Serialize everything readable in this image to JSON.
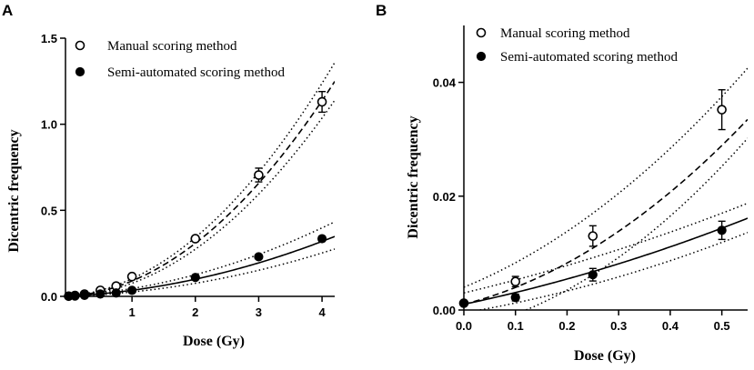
{
  "chart_data": [
    {
      "panel_label": "A",
      "type": "scatter",
      "xlabel": "Dose (Gy)",
      "ylabel": "Dicentric frequency",
      "xlim": [
        -0.05,
        4.2
      ],
      "ylim": [
        0,
        1.5
      ],
      "xticks": [
        "1",
        "2",
        "3",
        "4"
      ],
      "xtick_values": [
        1,
        2,
        3,
        4
      ],
      "yticks": [
        "0.0",
        "0.5",
        "1.0",
        "1.5"
      ],
      "ytick_values": [
        0,
        0.5,
        1.0,
        1.5
      ],
      "legend_position": "top-left",
      "series": [
        {
          "name": "Manual scoring method",
          "marker": "open-circle",
          "fit_line": "dashed",
          "x": [
            0,
            0.1,
            0.25,
            0.5,
            0.75,
            1,
            2,
            3,
            4
          ],
          "y": [
            0.001,
            0.005,
            0.013,
            0.035,
            0.06,
            0.115,
            0.335,
            0.705,
            1.13
          ],
          "err": [
            0,
            0.001,
            0.002,
            0.004,
            0.006,
            0.01,
            0.015,
            0.04,
            0.06
          ],
          "fit": {
            "c": 0.001,
            "a": 0.0232,
            "b": 0.0652
          },
          "ci_lower": {
            "c": 0.0,
            "a": 0.015,
            "b": 0.061
          },
          "ci_upper": {
            "c": 0.002,
            "a": 0.031,
            "b": 0.0695
          }
        },
        {
          "name": "Semi-automated scoring method",
          "marker": "filled-circle",
          "fit_line": "solid",
          "x": [
            0,
            0.1,
            0.25,
            0.5,
            0.75,
            1,
            2,
            3,
            4
          ],
          "y": [
            0.001,
            0.002,
            0.006,
            0.014,
            0.02,
            0.035,
            0.11,
            0.23,
            0.335
          ],
          "err": [
            0,
            0.0007,
            0.001,
            0.002,
            0.003,
            0.004,
            0.008,
            0.012,
            0.015
          ],
          "fit": {
            "c": 0.001,
            "a": 0.0192,
            "b": 0.0151
          },
          "ci_lower": {
            "c": 0.0,
            "a": 0.013,
            "b": 0.0125
          },
          "ci_upper": {
            "c": 0.002,
            "a": 0.025,
            "b": 0.0185
          }
        }
      ]
    },
    {
      "panel_label": "B",
      "type": "scatter",
      "xlabel": "Dose (Gy)",
      "ylabel": "Dicentric frequency",
      "xlim": [
        0,
        0.55
      ],
      "ylim": [
        0,
        0.05
      ],
      "xticks": [
        "0.0",
        "0.1",
        "0.2",
        "0.3",
        "0.4",
        "0.5"
      ],
      "xtick_values": [
        0,
        0.1,
        0.2,
        0.3,
        0.4,
        0.5
      ],
      "yticks": [
        "0.00",
        "0.02",
        "0.04"
      ],
      "ytick_values": [
        0,
        0.02,
        0.04
      ],
      "legend_position": "top-left",
      "series": [
        {
          "name": "Manual scoring method",
          "marker": "open-circle",
          "fit_line": "dashed",
          "x": [
            0,
            0.1,
            0.25,
            0.5
          ],
          "y": [
            0.0012,
            0.005,
            0.013,
            0.0352
          ],
          "err": [
            0,
            0.0009,
            0.0018,
            0.0035
          ],
          "fit": {
            "c": 0.001,
            "a": 0.0232,
            "b": 0.0652
          },
          "ci_lower": {
            "c": -0.0035,
            "a": 0.02,
            "b": 0.075
          },
          "ci_upper": {
            "c": 0.004,
            "a": 0.037,
            "b": 0.06
          }
        },
        {
          "name": "Semi-automated scoring method",
          "marker": "filled-circle",
          "fit_line": "solid",
          "x": [
            0,
            0.1,
            0.25,
            0.5
          ],
          "y": [
            0.0012,
            0.0022,
            0.0062,
            0.014
          ],
          "err": [
            0,
            0.0006,
            0.0011,
            0.0016
          ],
          "fit": {
            "c": 0.001,
            "a": 0.0192,
            "b": 0.0151
          },
          "ci_lower": {
            "c": -0.0005,
            "a": 0.0155,
            "b": 0.0185
          },
          "ci_upper": {
            "c": 0.003,
            "a": 0.0215,
            "b": 0.013
          }
        }
      ]
    }
  ]
}
